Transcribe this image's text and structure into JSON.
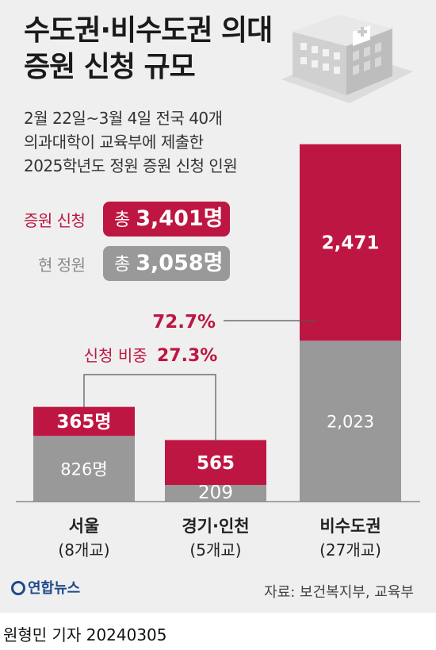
{
  "title_line1": "수도권·비수도권 의대",
  "title_line2": "증원 신청 규모",
  "subtitle_lines": [
    "2월 22일~3월 4일 전국 40개",
    "의과대학이 교육부에 제출한",
    "2025학년도 정원 증원 신청 인원"
  ],
  "legend": {
    "request_label": "증원 신청",
    "request_prefix": "총",
    "request_value": "3,401명",
    "current_label": "현 정원",
    "current_prefix": "총",
    "current_value": "3,058명"
  },
  "annotations": {
    "nonmetro_share": "72.7%",
    "metro_share_label": "신청 비중",
    "metro_share_value": "27.3%"
  },
  "chart_data": {
    "type": "bar",
    "stacked": true,
    "categories": [
      "서울",
      "경기·인천",
      "비수도권"
    ],
    "category_sublabels": [
      "(8개교)",
      "(5개교)",
      "(27개교)"
    ],
    "series": [
      {
        "name": "현 정원",
        "values": [
          826,
          209,
          2023
        ],
        "labels": [
          "826명",
          "209",
          "2,023"
        ],
        "color": "#999999"
      },
      {
        "name": "증원 신청",
        "values": [
          365,
          565,
          2471
        ],
        "labels": [
          "365명",
          "565",
          "2,471"
        ],
        "color": "#be1642"
      }
    ],
    "ymax": 4500
  },
  "colors": {
    "accent": "#be1642",
    "gray": "#999999"
  },
  "logo_text": "연합뉴스",
  "source": "자료: 보건복지부, 교육부",
  "byline": "원형민 기자  20240305"
}
